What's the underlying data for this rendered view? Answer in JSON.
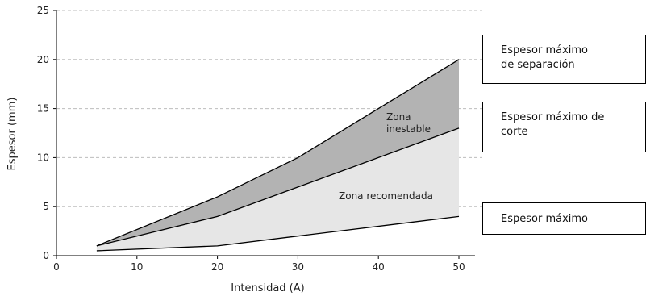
{
  "chart_data": {
    "type": "area",
    "xlabel": "Intensidad (A)",
    "ylabel": "Espesor (mm)",
    "xlim": [
      0,
      52
    ],
    "ylim": [
      0,
      25
    ],
    "x_ticks": [
      0,
      10,
      20,
      30,
      40,
      50
    ],
    "y_ticks": [
      0,
      5,
      10,
      15,
      20,
      25
    ],
    "grid": "horizontal dashed",
    "x": [
      5,
      20,
      30,
      50
    ],
    "series": [
      {
        "name": "Espesor máximo de separación",
        "values": [
          1,
          6,
          10,
          20
        ]
      },
      {
        "name": "Espesor máximo de corte",
        "values": [
          1,
          4,
          7,
          13
        ]
      },
      {
        "name": "Espesor máximo",
        "values": [
          0.5,
          1,
          2,
          4
        ]
      }
    ],
    "zones": [
      {
        "label": "Zona\ninestable",
        "color": "#b3b3b3"
      },
      {
        "label": "Zona recomendada",
        "color": "#e6e6e6"
      }
    ],
    "legend": [
      {
        "text": "Espesor máximo\nde separación"
      },
      {
        "text": "Espesor máximo de\ncorte"
      },
      {
        "text": "Espesor máximo"
      }
    ]
  }
}
